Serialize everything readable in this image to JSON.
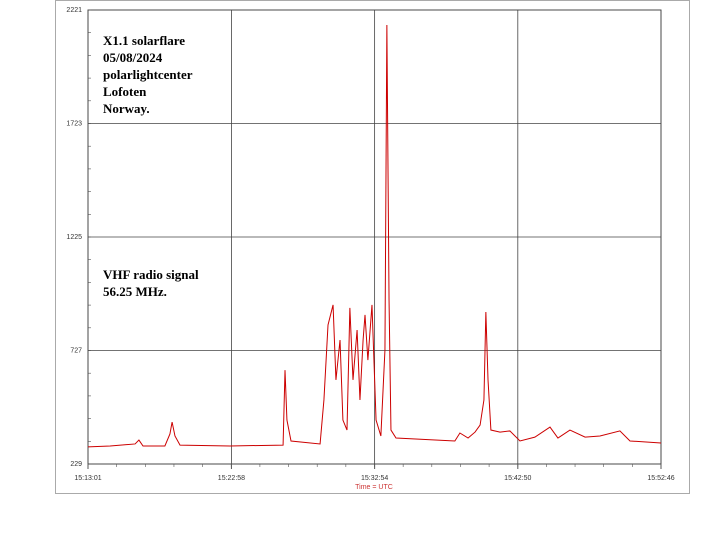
{
  "chart_data": {
    "type": "line",
    "x_label": "Time = UTC",
    "annotations": [
      [
        "X1.1 solarflare",
        "05/08/2024",
        "polarlightcenter",
        "Lofoten",
        "Norway."
      ],
      [
        "VHF radio signal",
        "56.25 MHz."
      ]
    ],
    "xlim": [
      "15:13:01",
      "15:52:46"
    ],
    "xticks": [
      "15:13:01",
      "15:22:58",
      "15:32:54",
      "15:42:50",
      "15:52:46"
    ],
    "ylim": [
      229,
      2221
    ],
    "yticks": [
      229,
      727,
      1225,
      1723,
      2221
    ],
    "grid": true,
    "x": [
      "15:13:01",
      "15:14:33",
      "15:16:17",
      "15:16:33",
      "15:16:50",
      "15:18:21",
      "15:18:42",
      "15:18:51",
      "15:19:03",
      "15:19:24",
      "15:22:52",
      "15:26:33",
      "15:26:41",
      "15:26:49",
      "15:27:06",
      "15:29:07",
      "15:29:23",
      "15:29:40",
      "15:30:01",
      "15:30:13",
      "15:30:30",
      "15:30:42",
      "15:30:59",
      "15:31:11",
      "15:31:24",
      "15:31:41",
      "15:31:53",
      "15:32:06",
      "15:32:14",
      "15:32:26",
      "15:32:43",
      "15:33:00",
      "15:33:20",
      "15:33:37",
      "15:33:45",
      "15:33:54",
      "15:34:02",
      "15:34:23",
      "15:38:28",
      "15:38:49",
      "15:39:23",
      "15:39:52",
      "15:40:13",
      "15:40:29",
      "15:40:37",
      "15:40:46",
      "15:40:58",
      "15:41:36",
      "15:42:17",
      "15:42:59",
      "15:44:01",
      "15:45:04",
      "15:45:37",
      "15:46:27",
      "15:47:30",
      "15:48:32",
      "15:49:55",
      "15:50:37",
      "15:52:46"
    ],
    "series": [
      {
        "color": "#cc0000",
        "values": [
          304,
          308,
          317,
          334,
          308,
          308,
          361,
          413,
          352,
          312,
          308,
          312,
          641,
          422,
          330,
          317,
          510,
          839,
          927,
          598,
          773,
          422,
          378,
          914,
          598,
          817,
          510,
          773,
          883,
          685,
          927,
          422,
          352,
          729,
          2155,
          949,
          378,
          343,
          330,
          365,
          343,
          369,
          400,
          510,
          896,
          598,
          378,
          369,
          374,
          330,
          347,
          391,
          343,
          378,
          347,
          352,
          374,
          330,
          321
        ]
      }
    ]
  }
}
